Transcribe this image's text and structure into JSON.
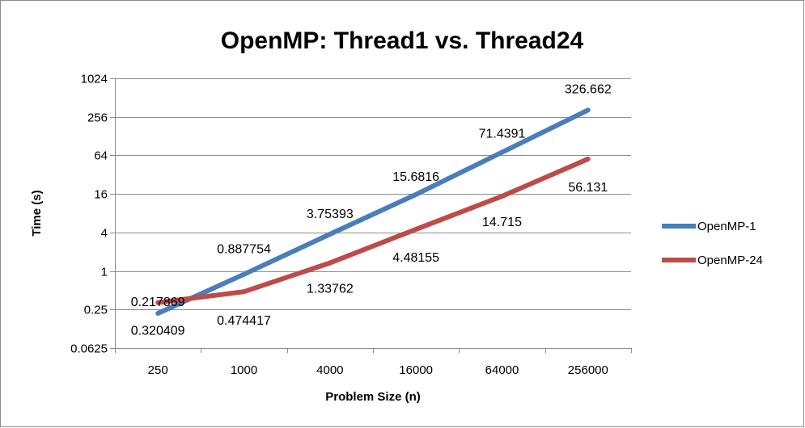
{
  "chart_data": {
    "type": "line",
    "title": "OpenMP: Thread1 vs. Thread24",
    "xlabel": "Problem Size (n)",
    "ylabel": "Time (s)",
    "categories": [
      "250",
      "1000",
      "4000",
      "16000",
      "64000",
      "256000"
    ],
    "y_scale": "log2",
    "ylim": [
      0.0625,
      1024
    ],
    "y_ticks": [
      "0.0625",
      "0.25",
      "1",
      "4",
      "16",
      "64",
      "256",
      "1024"
    ],
    "y_tick_values": [
      0.0625,
      0.25,
      1,
      4,
      16,
      64,
      256,
      1024
    ],
    "grid": true,
    "legend_position": "right",
    "series": [
      {
        "name": "OpenMP-1",
        "color": "#4a7ebb",
        "values": [
          0.217869,
          0.887754,
          3.75393,
          15.6816,
          71.4391,
          326.662
        ],
        "labels": [
          "0.217869",
          "0.887754",
          "3.75393",
          "15.6816",
          "71.4391",
          "326.662"
        ]
      },
      {
        "name": "OpenMP-24",
        "color": "#be4b48",
        "values": [
          0.320409,
          0.474417,
          1.33762,
          4.48155,
          14.715,
          56.131
        ],
        "labels": [
          "0.320409",
          "0.474417",
          "1.33762",
          "4.48155",
          "14.715",
          "56.131"
        ]
      }
    ]
  }
}
